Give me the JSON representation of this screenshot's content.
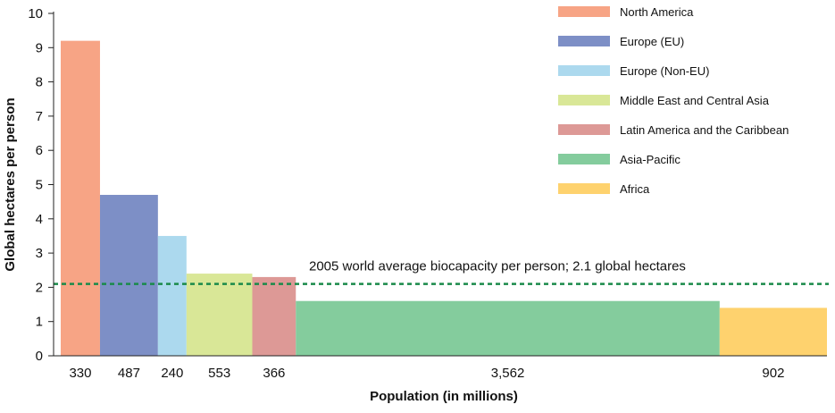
{
  "chart_data": {
    "type": "bar",
    "variant": "variable-width",
    "xlabel": "Population (in millions)",
    "ylabel": "Global hectares per person",
    "ylim": [
      0,
      10
    ],
    "yticks": [
      0,
      1,
      2,
      3,
      4,
      5,
      6,
      7,
      8,
      9,
      10
    ],
    "grid": false,
    "legend_position": "top-right",
    "categories": [
      "North America",
      "Europe (EU)",
      "Europe (Non-EU)",
      "Middle East and Central Asia",
      "Latin America and the Caribbean",
      "Asia-Pacific",
      "Africa"
    ],
    "widths": [
      330,
      487,
      240,
      553,
      366,
      3562,
      902
    ],
    "width_labels": [
      "330",
      "487",
      "240",
      "553",
      "366",
      "3,562",
      "902"
    ],
    "values": [
      9.2,
      4.7,
      3.5,
      2.4,
      2.3,
      1.6,
      1.4
    ],
    "colors": [
      "#f7a485",
      "#7d8fc6",
      "#acd9ee",
      "#d9e797",
      "#dd9996",
      "#84cc9d",
      "#fed26e"
    ],
    "reference_line": {
      "value": 2.1,
      "label": "2005 world average biocapacity per person; 2.1 global hectares",
      "color": "#1a8a4a"
    }
  }
}
